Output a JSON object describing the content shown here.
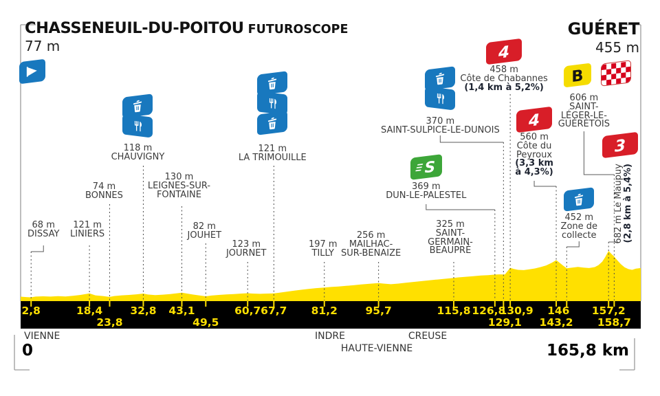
{
  "header": {
    "start": {
      "name": "CHASSENEUIL-DU-POITOU",
      "subname": "FUTUROSCOPE",
      "altitude": "77 m"
    },
    "finish": {
      "name": "GUÉRET",
      "altitude": "455 m"
    },
    "start_km": "0",
    "total_distance": "165,8 km"
  },
  "colors": {
    "profile_yellow": "#FFE000",
    "bar_black": "#000000",
    "icon_blue": "#1878BE",
    "climb_red": "#D81E28",
    "sprint_green": "#3DA639",
    "bonus_yellow": "#F5DC00",
    "check_red": "#D6001C",
    "km_text": "#FFE000"
  },
  "icons": {
    "start": "start-flag-icon",
    "finish": "finish-checkered-flag-icon",
    "waste": "waste-bin-icon",
    "feed": "feed-zone-fork-knife-icon",
    "sprint_glyph": "S",
    "bonus_glyph": "B"
  },
  "chart_data": {
    "type": "area",
    "title": "Stage profile: Chasseneuil-du-Poitou Futuroscope to Guéret",
    "x_unit": "km",
    "y_unit": "m",
    "x_range": [
      0,
      165.8
    ],
    "start_elevation": 77,
    "finish_elevation": 455,
    "profile": [
      [
        0,
        77
      ],
      [
        1.5,
        72
      ],
      [
        2.8,
        68
      ],
      [
        4,
        78
      ],
      [
        6,
        82
      ],
      [
        8,
        78
      ],
      [
        10,
        84
      ],
      [
        12,
        80
      ],
      [
        14,
        88
      ],
      [
        16,
        100
      ],
      [
        18.4,
        121
      ],
      [
        20,
        95
      ],
      [
        22,
        85
      ],
      [
        23.8,
        74
      ],
      [
        25,
        85
      ],
      [
        27,
        95
      ],
      [
        29,
        100
      ],
      [
        31,
        108
      ],
      [
        32.8,
        118
      ],
      [
        34,
        105
      ],
      [
        36,
        98
      ],
      [
        38,
        104
      ],
      [
        40,
        112
      ],
      [
        43.1,
        130
      ],
      [
        44.5,
        118
      ],
      [
        46,
        105
      ],
      [
        48,
        92
      ],
      [
        49.5,
        82
      ],
      [
        51,
        92
      ],
      [
        53,
        100
      ],
      [
        55,
        106
      ],
      [
        57,
        112
      ],
      [
        59,
        118
      ],
      [
        60.7,
        123
      ],
      [
        62,
        118
      ],
      [
        64,
        115
      ],
      [
        66,
        118
      ],
      [
        67.7,
        121
      ],
      [
        69,
        128
      ],
      [
        71,
        142
      ],
      [
        73,
        155
      ],
      [
        75,
        168
      ],
      [
        77,
        180
      ],
      [
        79,
        190
      ],
      [
        81.2,
        197
      ],
      [
        83,
        205
      ],
      [
        85,
        212
      ],
      [
        87,
        220
      ],
      [
        89,
        228
      ],
      [
        91,
        238
      ],
      [
        93,
        246
      ],
      [
        95.7,
        256
      ],
      [
        97,
        250
      ],
      [
        99,
        242
      ],
      [
        101,
        250
      ],
      [
        103,
        262
      ],
      [
        105,
        272
      ],
      [
        107,
        282
      ],
      [
        109,
        292
      ],
      [
        111,
        302
      ],
      [
        113,
        312
      ],
      [
        115.8,
        325
      ],
      [
        117,
        332
      ],
      [
        119,
        340
      ],
      [
        121,
        348
      ],
      [
        123,
        356
      ],
      [
        125,
        362
      ],
      [
        126.8,
        369
      ],
      [
        128,
        372
      ],
      [
        129.1,
        370
      ],
      [
        129.5,
        372
      ],
      [
        130.9,
        458
      ],
      [
        131.8,
        445
      ],
      [
        133,
        432
      ],
      [
        134.5,
        428
      ],
      [
        136,
        438
      ],
      [
        137.5,
        450
      ],
      [
        139,
        468
      ],
      [
        140.5,
        490
      ],
      [
        142,
        525
      ],
      [
        143.2,
        560
      ],
      [
        144,
        530
      ],
      [
        145,
        490
      ],
      [
        146,
        452
      ],
      [
        147.5,
        462
      ],
      [
        149,
        470
      ],
      [
        150.5,
        462
      ],
      [
        152,
        455
      ],
      [
        153.5,
        468
      ],
      [
        154.5,
        495
      ],
      [
        155.5,
        540
      ],
      [
        156.3,
        600
      ],
      [
        157.2,
        682
      ],
      [
        158,
        640
      ],
      [
        158.7,
        606
      ],
      [
        159.5,
        560
      ],
      [
        160.5,
        505
      ],
      [
        161.5,
        465
      ],
      [
        162.5,
        442
      ],
      [
        163.5,
        432
      ],
      [
        164.5,
        448
      ],
      [
        165.8,
        455
      ]
    ],
    "waypoints": [
      {
        "km": 2.8,
        "km_label": "2,8",
        "row": 1,
        "altitude": "68 m",
        "name_lines": [
          "DISSAY"
        ],
        "icons": []
      },
      {
        "km": 18.4,
        "km_label": "18,4",
        "row": 1,
        "altitude": "121 m",
        "name_lines": [
          "LINIERS"
        ],
        "icons": []
      },
      {
        "km": 23.8,
        "km_label": "23,8",
        "row": 2,
        "altitude": "74 m",
        "name_lines": [
          "BONNES"
        ],
        "icons": []
      },
      {
        "km": 32.8,
        "km_label": "32,8",
        "row": 1,
        "altitude": "118 m",
        "name_lines": [
          "CHAUVIGNY"
        ],
        "icons": [
          "waste",
          "feed"
        ]
      },
      {
        "km": 43.1,
        "km_label": "43,1",
        "row": 1,
        "altitude": "130 m",
        "name_lines": [
          "LEIGNES-SUR-",
          "FONTAINE"
        ],
        "icons": []
      },
      {
        "km": 49.5,
        "km_label": "49,5",
        "row": 2,
        "altitude": "82 m",
        "name_lines": [
          "JOUHET"
        ],
        "icons": []
      },
      {
        "km": 60.7,
        "km_label": "60,7",
        "row": 1,
        "altitude": "123 m",
        "name_lines": [
          "JOURNET"
        ],
        "icons": []
      },
      {
        "km": 67.7,
        "km_label": "67,7",
        "row": 1,
        "altitude": "121 m",
        "name_lines": [
          "LA TRIMOUILLE"
        ],
        "icons": [
          "waste",
          "feed",
          "waste"
        ]
      },
      {
        "km": 81.2,
        "km_label": "81,2",
        "row": 1,
        "altitude": "197 m",
        "name_lines": [
          "TILLY"
        ],
        "icons": []
      },
      {
        "km": 95.7,
        "km_label": "95,7",
        "row": 1,
        "altitude": "256 m",
        "name_lines": [
          "MAILHAC-",
          "SUR-BENAIZE"
        ],
        "icons": []
      },
      {
        "km": 115.8,
        "km_label": "115,8",
        "row": 1,
        "altitude": "325 m",
        "name_lines": [
          "SAINT-",
          "GERMAIN-",
          "BEAUPRÉ"
        ],
        "icons": []
      },
      {
        "km": 126.8,
        "km_label": "126,8",
        "row": 1,
        "altitude": "369 m",
        "name_lines": [
          "DUN-LE-PALESTEL"
        ],
        "icons": [
          "sprint"
        ]
      },
      {
        "km": 129.1,
        "km_label": "129,1",
        "row": 2,
        "altitude": "370 m",
        "name_lines": [
          "SAINT-SULPICE-LE-DUNOIS"
        ],
        "icons": [
          "waste",
          "feed"
        ]
      },
      {
        "km": 130.9,
        "km_label": "130,9",
        "row": 1,
        "altitude": "458 m",
        "name_lines": [
          "Côte de Chabannes"
        ],
        "gradient_lines": [
          "(1,4 km à 5,2%)"
        ],
        "icons": [
          "climb"
        ],
        "category": "4"
      },
      {
        "km": 143.2,
        "km_label": "143,2",
        "row": 2,
        "altitude": "560 m",
        "name_lines": [
          "Côte du",
          "Peyroux"
        ],
        "gradient_lines": [
          "(3,3 km",
          "à 4,3%)"
        ],
        "icons": [
          "climb"
        ],
        "category": "4"
      },
      {
        "km": 146,
        "km_label": "146",
        "row": 1,
        "altitude": "452 m",
        "name_lines": [
          "Zone de",
          "collecte"
        ],
        "icons": [
          "waste"
        ]
      },
      {
        "km": 157.2,
        "km_label": "157,2",
        "row": 1,
        "altitude": "682 m",
        "name_lines": [
          "Le Maupuy"
        ],
        "gradient_lines": [
          "(2,8 km à 5,4%)"
        ],
        "icons": [
          "climb"
        ],
        "category": "3",
        "vertical": true
      },
      {
        "km": 158.7,
        "km_label": "158,7",
        "row": 2,
        "altitude": "606 m",
        "name_lines": [
          "SAINT-",
          "LÉGER-LE-",
          "GUÉRÉTOIS"
        ],
        "icons": [
          "bonus"
        ]
      }
    ],
    "regions": [
      {
        "name": "VIENNE"
      },
      {
        "name": "INDRE"
      },
      {
        "name": "HAUTE-VIENNE"
      },
      {
        "name": "CREUSE"
      }
    ]
  }
}
